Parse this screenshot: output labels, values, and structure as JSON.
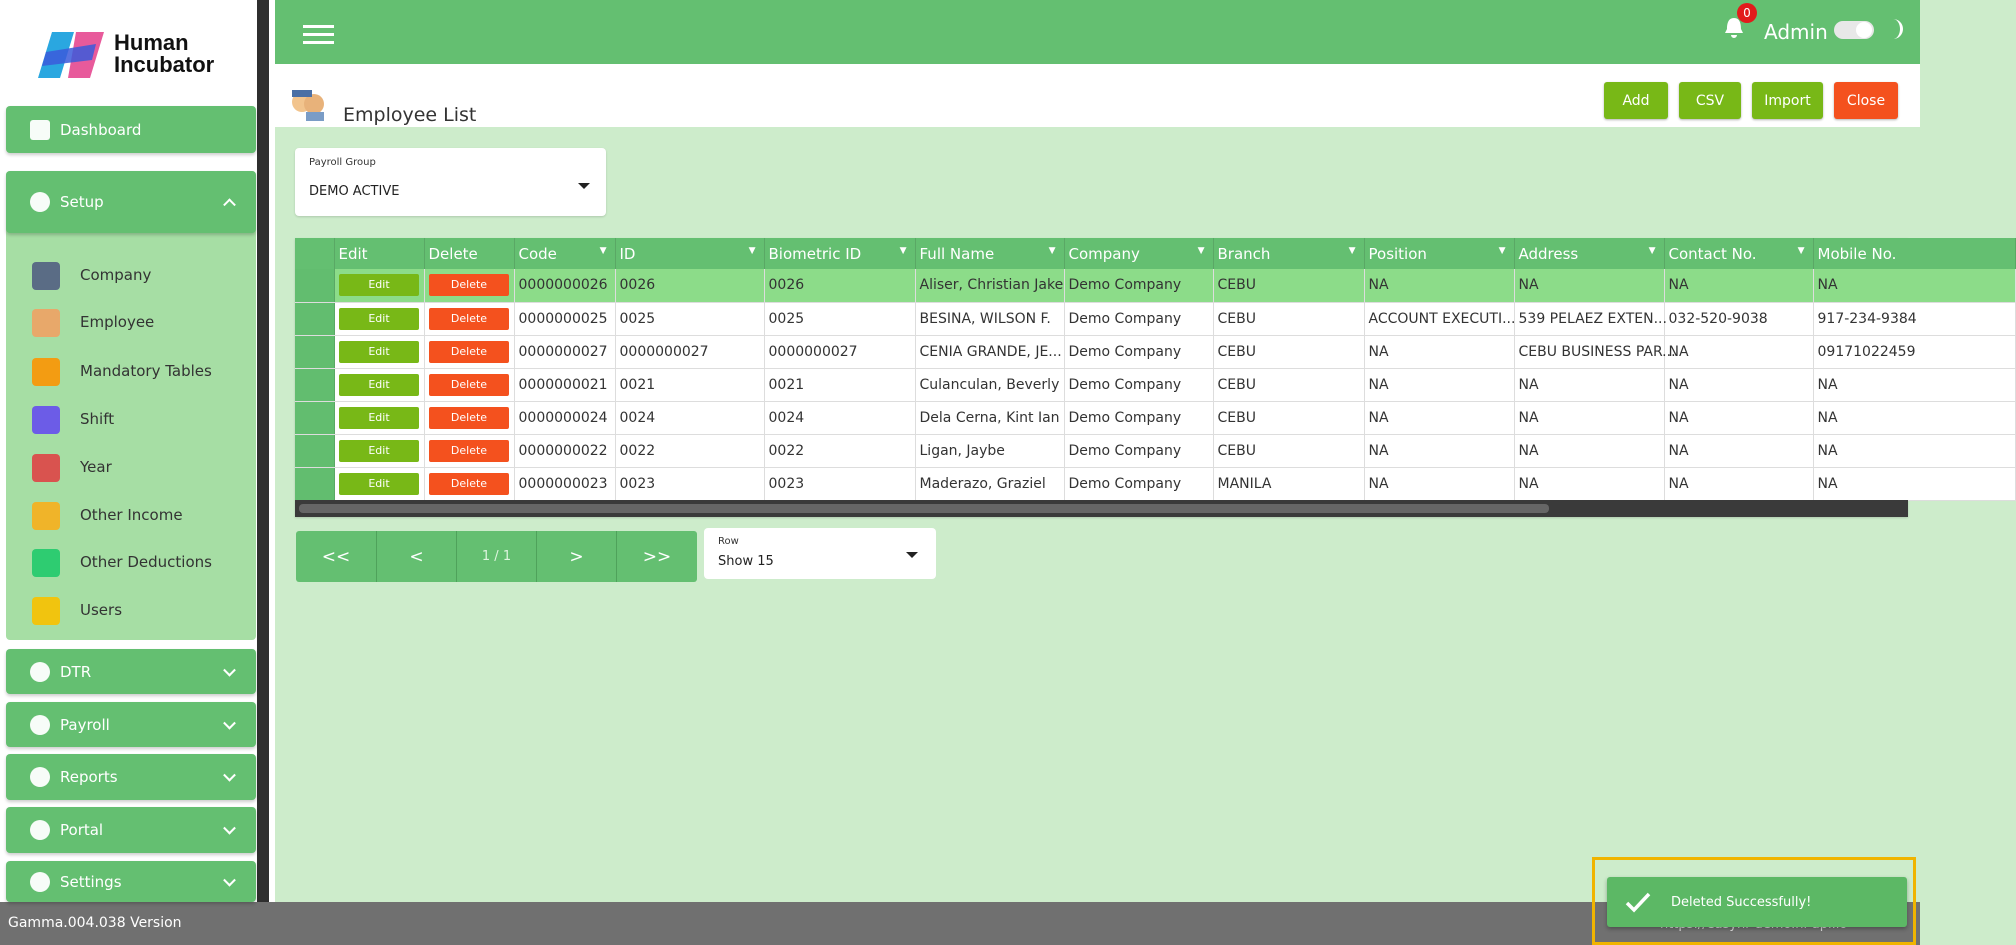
{
  "sidebar": {
    "logo": [
      "Human",
      "Incubator"
    ],
    "dashboard": "Dashboard",
    "setup": "Setup",
    "setup_items": [
      "Company",
      "Employee",
      "Mandatory Tables",
      "Shift",
      "Year",
      "Other Income",
      "Other Deductions",
      "Users"
    ],
    "groups": [
      "DTR",
      "Payroll",
      "Reports",
      "Portal",
      "Settings"
    ]
  },
  "header": {
    "notifications": "0",
    "user": "Admin"
  },
  "page": {
    "title": "Employee List",
    "buttons": [
      "Add",
      "CSV",
      "Import",
      "Close"
    ],
    "filter": {
      "label": "Payroll Group",
      "value": "DEMO ACTIVE"
    }
  },
  "table": {
    "columns": [
      "Edit",
      "Delete",
      "Code",
      "ID",
      "Biometric ID",
      "Full Name",
      "Company",
      "Branch",
      "Position",
      "Address",
      "Contact No.",
      "Mobile No."
    ],
    "edit_label": "Edit",
    "delete_label": "Delete",
    "rows": [
      [
        "0000000026",
        "0026",
        "0026",
        "Aliser, Christian Jake",
        "Demo Company",
        "CEBU",
        "NA",
        "NA",
        "NA",
        "NA"
      ],
      [
        "0000000025",
        "0025",
        "0025",
        "BESINA, WILSON F.",
        "Demo Company",
        "CEBU",
        "ACCOUNT EXECUTI...",
        "539 PELAEZ EXTEN...",
        "032-520-9038",
        "917-234-9384"
      ],
      [
        "0000000027",
        "0000000027",
        "0000000027",
        "CENIA GRANDE, JE...",
        "Demo Company",
        "CEBU",
        "NA",
        "CEBU BUSINESS PAR...",
        "NA",
        "09171022459"
      ],
      [
        "0000000021",
        "0021",
        "0021",
        "Culanculan, Beverly",
        "Demo Company",
        "CEBU",
        "NA",
        "NA",
        "NA",
        "NA"
      ],
      [
        "0000000024",
        "0024",
        "0024",
        "Dela Cerna, Kint Ian",
        "Demo Company",
        "CEBU",
        "NA",
        "NA",
        "NA",
        "NA"
      ],
      [
        "0000000022",
        "0022",
        "0022",
        "Ligan, Jaybe",
        "Demo Company",
        "CEBU",
        "NA",
        "NA",
        "NA",
        "NA"
      ],
      [
        "0000000023",
        "0023",
        "0023",
        "Maderazo, Graziel",
        "Demo Company",
        "MANILA",
        "NA",
        "NA",
        "NA",
        "NA"
      ]
    ]
  },
  "pagination": {
    "buttons": [
      "<<",
      "<",
      "1 / 1",
      ">",
      ">>"
    ],
    "row_label": "Row",
    "row_value": "Show 15"
  },
  "footer": {
    "version": "Gamma.004.038 Version",
    "url": "https://easyhr-demo.hi-api.io"
  },
  "toast": "Deleted Successfully!"
}
